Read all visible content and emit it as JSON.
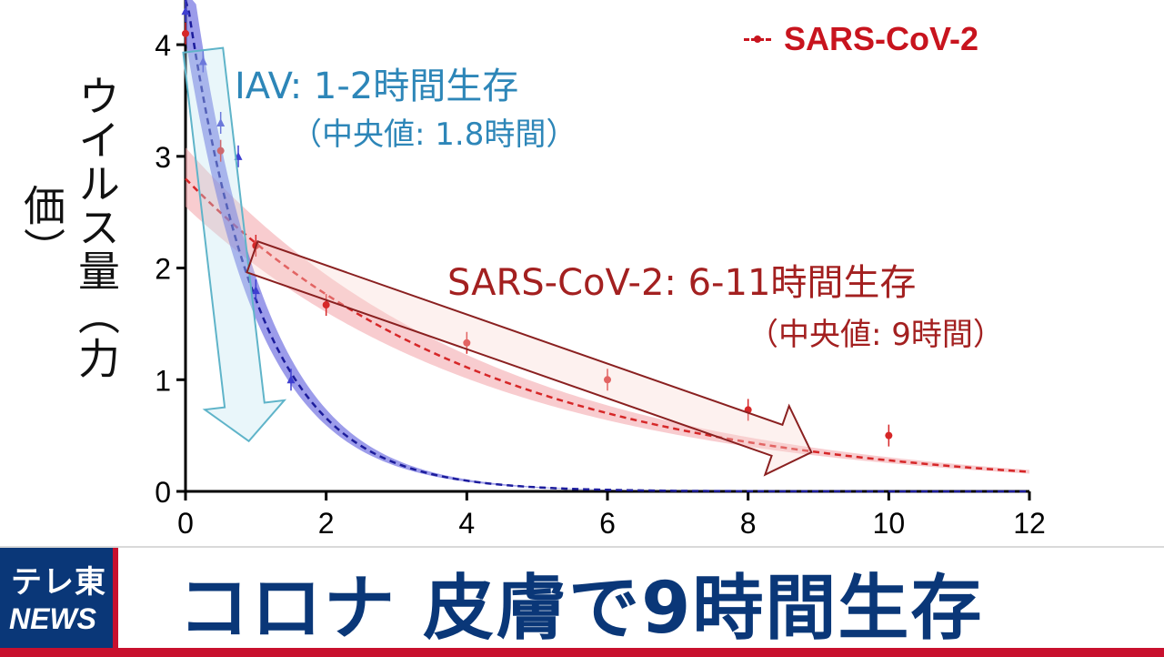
{
  "chart_data": {
    "type": "scatter",
    "ylabel": "ウイルス量（力価）",
    "xlim": [
      0,
      12
    ],
    "ylim": [
      0,
      4.4
    ],
    "x_ticks": [
      "0",
      "2",
      "4",
      "6",
      "8",
      "10",
      "12"
    ],
    "y_ticks": [
      "0",
      "1",
      "2",
      "3",
      "4"
    ],
    "legend": {
      "label": "SARS-CoV-2",
      "position": "top-right"
    },
    "series": [
      {
        "name": "SARS-CoV-2",
        "color": "#d62728",
        "points": [
          {
            "x": 0,
            "y": 4.1
          },
          {
            "x": 0.5,
            "y": 3.05
          },
          {
            "x": 1,
            "y": 2.2
          },
          {
            "x": 2,
            "y": 1.67
          },
          {
            "x": 4,
            "y": 1.33
          },
          {
            "x": 6,
            "y": 1.0
          },
          {
            "x": 8,
            "y": 0.73
          },
          {
            "x": 10,
            "y": 0.5
          }
        ],
        "fit_start": 2.8,
        "half_life_hours": 3.0
      },
      {
        "name": "IAV",
        "color": "#3f3fd0",
        "points": [
          {
            "x": 0,
            "y": 4.3
          },
          {
            "x": 0.25,
            "y": 3.85
          },
          {
            "x": 0.5,
            "y": 3.3
          },
          {
            "x": 0.75,
            "y": 3.0
          },
          {
            "x": 1,
            "y": 1.8
          },
          {
            "x": 1.5,
            "y": 1.0
          }
        ],
        "fit_start": 4.5,
        "half_life_hours": 0.72
      }
    ],
    "annotations": {
      "iav_title": "IAV: 1-2時間生存",
      "iav_median": "（中央値: 1.8時間）",
      "sars_title": "SARS-CoV-2: 6-11時間生存",
      "sars_median": "（中央値: 9時間）"
    }
  },
  "banner": {
    "logo_line1": "テレ東",
    "logo_line2": "NEWS",
    "headline": "コロナ 皮膚で9時間生存",
    "accent_color": "#c8102e",
    "brand_color": "#0a3778"
  }
}
